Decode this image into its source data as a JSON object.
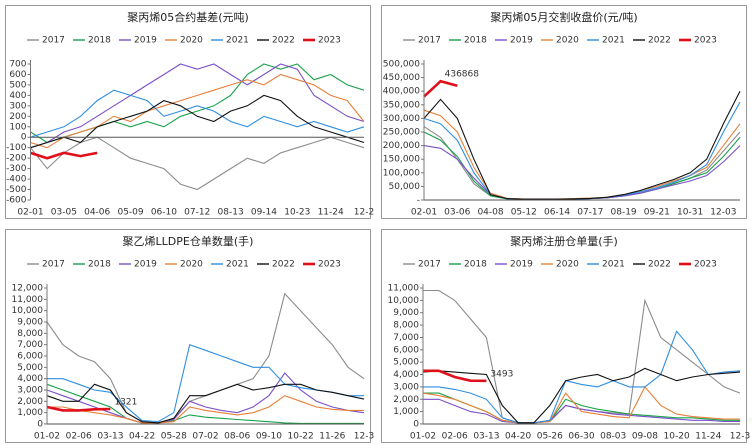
{
  "chart_data": [
    {
      "type": "line",
      "title": "聚丙烯05合约基差(元吨)",
      "grid": false,
      "categories": [
        "02-01",
        null,
        "03-05",
        null,
        "04-06",
        null,
        "05-09",
        null,
        "06-10",
        null,
        "07-12",
        null,
        "08-13",
        null,
        "09-14",
        null,
        "10-23",
        null,
        "11-24",
        null,
        "12-2"
      ],
      "ylim": [
        -600,
        700
      ],
      "yticks": [
        -600,
        -500,
        -400,
        -300,
        -200,
        -100,
        0,
        100,
        200,
        300,
        400,
        500,
        600,
        700
      ],
      "series": [
        {
          "name": "2017",
          "color": "#8c8c8c",
          "values": [
            -100,
            -300,
            -150,
            -50,
            0,
            -100,
            -200,
            -250,
            -300,
            -450,
            -500,
            -400,
            -300,
            -200,
            -250,
            -150,
            -100,
            -50,
            0,
            -50,
            -100
          ]
        },
        {
          "name": "2018",
          "color": "#1aa34a",
          "values": [
            50,
            -50,
            0,
            50,
            100,
            150,
            100,
            150,
            100,
            200,
            250,
            300,
            400,
            600,
            700,
            650,
            700,
            550,
            600,
            500,
            450
          ]
        },
        {
          "name": "2019",
          "color": "#7b4fc9",
          "values": [
            -100,
            -50,
            50,
            100,
            200,
            300,
            400,
            500,
            600,
            700,
            650,
            700,
            600,
            500,
            600,
            700,
            650,
            400,
            300,
            200,
            150
          ]
        },
        {
          "name": "2020",
          "color": "#e8803a",
          "values": [
            -50,
            -100,
            0,
            50,
            100,
            200,
            150,
            250,
            300,
            350,
            400,
            450,
            500,
            550,
            500,
            600,
            550,
            500,
            400,
            350,
            150
          ]
        },
        {
          "name": "2021",
          "color": "#2f8fe0",
          "values": [
            0,
            50,
            100,
            200,
            350,
            450,
            400,
            350,
            200,
            250,
            300,
            250,
            150,
            100,
            200,
            150,
            100,
            150,
            100,
            50,
            100
          ]
        },
        {
          "name": "2022",
          "color": "#111111",
          "values": [
            -100,
            -50,
            0,
            -50,
            100,
            150,
            200,
            250,
            350,
            300,
            200,
            150,
            250,
            300,
            400,
            350,
            200,
            100,
            50,
            0,
            -50
          ]
        },
        {
          "name": "2023",
          "color": "#e0101a",
          "values": [
            -150,
            -200,
            -150,
            -180,
            -150,
            null,
            null,
            null,
            null,
            null,
            null,
            null,
            null,
            null,
            null,
            null,
            null,
            null,
            null,
            null,
            null
          ]
        }
      ]
    },
    {
      "type": "line",
      "title": "聚丙烯05月交割收盘价(元/吨)",
      "grid": false,
      "annotation": "436868",
      "categories": [
        "02-01",
        null,
        "03-06",
        null,
        "04-08",
        null,
        "05-12",
        null,
        "06-14",
        null,
        "07-17",
        null,
        "08-19",
        null,
        "09-21",
        null,
        "10-31",
        null,
        "12-03",
        null
      ],
      "ylim": [
        0,
        500000
      ],
      "yticks": [
        {
          "value": 0,
          "label": "-"
        },
        {
          "value": 50000,
          "label": "50,000"
        },
        {
          "value": 100000,
          "label": "100,000"
        },
        {
          "value": 150000,
          "label": "150,000"
        },
        {
          "value": 200000,
          "label": "200,000"
        },
        {
          "value": 250000,
          "label": "250,000"
        },
        {
          "value": 300000,
          "label": "300,000"
        },
        {
          "value": 350000,
          "label": "350,000"
        },
        {
          "value": 400000,
          "label": "400,000"
        },
        {
          "value": 450000,
          "label": "450,000"
        },
        {
          "value": 500000,
          "label": "500,000"
        }
      ],
      "series": [
        {
          "name": "2017",
          "color": "#8c8c8c",
          "values": [
            270000,
            230000,
            150000,
            60000,
            15000,
            5000,
            3000,
            3000,
            3000,
            4000,
            5000,
            8000,
            15000,
            25000,
            40000,
            60000,
            80000,
            110000,
            180000,
            250000
          ]
        },
        {
          "name": "2018",
          "color": "#1aa34a",
          "values": [
            250000,
            220000,
            160000,
            70000,
            15000,
            4000,
            3000,
            3000,
            3000,
            3000,
            5000,
            8000,
            15000,
            25000,
            40000,
            60000,
            80000,
            100000,
            160000,
            230000
          ]
        },
        {
          "name": "2019",
          "color": "#7b4fc9",
          "values": [
            200000,
            190000,
            150000,
            80000,
            20000,
            5000,
            3000,
            3000,
            3000,
            3000,
            5000,
            8000,
            15000,
            25000,
            40000,
            55000,
            70000,
            90000,
            140000,
            200000
          ]
        },
        {
          "name": "2020",
          "color": "#e8803a",
          "values": [
            330000,
            310000,
            250000,
            120000,
            25000,
            6000,
            4000,
            4000,
            4000,
            5000,
            7000,
            10000,
            20000,
            35000,
            50000,
            70000,
            90000,
            120000,
            200000,
            280000
          ]
        },
        {
          "name": "2021",
          "color": "#2f8fe0",
          "values": [
            300000,
            280000,
            220000,
            100000,
            20000,
            5000,
            3000,
            3000,
            3000,
            4000,
            6000,
            10000,
            18000,
            30000,
            45000,
            65000,
            90000,
            130000,
            250000,
            360000
          ]
        },
        {
          "name": "2022",
          "color": "#111111",
          "values": [
            300000,
            370000,
            300000,
            150000,
            20000,
            5000,
            3000,
            3000,
            3000,
            4000,
            6000,
            10000,
            20000,
            35000,
            55000,
            75000,
            100000,
            150000,
            280000,
            400000
          ]
        },
        {
          "name": "2023",
          "color": "#e0101a",
          "values": [
            380000,
            436868,
            420000,
            null,
            null,
            null,
            null,
            null,
            null,
            null,
            null,
            null,
            null,
            null,
            null,
            null,
            null,
            null,
            null,
            null
          ]
        }
      ]
    },
    {
      "type": "line",
      "title": "聚乙烯LLDPE仓单数量(手)",
      "grid": false,
      "annotation": "1321",
      "categories": [
        "01-02",
        null,
        "02-06",
        null,
        "03-13",
        null,
        "04-22",
        null,
        "05-28",
        null,
        "07-02",
        null,
        "08-06",
        null,
        "09-10",
        null,
        "10-22",
        null,
        "11-26",
        null,
        "12-3"
      ],
      "ylim": [
        0,
        12000
      ],
      "yticks": [
        0,
        {
          "value": 1000,
          "label": "1,000"
        },
        {
          "value": 2000,
          "label": "2,000"
        },
        {
          "value": 3000,
          "label": "3,000"
        },
        {
          "value": 4000,
          "label": "4,000"
        },
        {
          "value": 5000,
          "label": "5,000"
        },
        {
          "value": 6000,
          "label": "6,000"
        },
        {
          "value": 7000,
          "label": "7,000"
        },
        {
          "value": 8000,
          "label": "8,000"
        },
        {
          "value": 9000,
          "label": "9,000"
        },
        {
          "value": 10000,
          "label": "10,000"
        },
        {
          "value": 11000,
          "label": "11,000"
        },
        {
          "value": 12000,
          "label": "12,000"
        }
      ],
      "series": [
        {
          "name": "2017",
          "color": "#8c8c8c",
          "values": [
            9000,
            7000,
            6000,
            5500,
            4000,
            1000,
            200,
            100,
            500,
            2000,
            2500,
            3000,
            3500,
            4000,
            6000,
            11500,
            10000,
            8500,
            7000,
            5000,
            4000
          ]
        },
        {
          "name": "2018",
          "color": "#1aa34a",
          "values": [
            3500,
            3000,
            2500,
            2000,
            1500,
            500,
            100,
            100,
            300,
            800,
            600,
            500,
            400,
            300,
            200,
            100,
            50,
            50,
            50,
            50,
            50
          ]
        },
        {
          "name": "2019",
          "color": "#7b4fc9",
          "values": [
            3000,
            2500,
            2000,
            1500,
            1000,
            500,
            100,
            100,
            400,
            2000,
            1500,
            1200,
            1000,
            1500,
            2500,
            4500,
            3000,
            2000,
            1500,
            1200,
            1000
          ]
        },
        {
          "name": "2020",
          "color": "#e8803a",
          "values": [
            1500,
            1500,
            1200,
            1000,
            800,
            500,
            100,
            100,
            200,
            1500,
            1200,
            1000,
            800,
            1000,
            1500,
            2500,
            2000,
            1500,
            1300,
            1200,
            1200
          ]
        },
        {
          "name": "2021",
          "color": "#2f8fe0",
          "values": [
            4000,
            4000,
            3500,
            3000,
            2800,
            1500,
            300,
            200,
            1000,
            7000,
            6500,
            6000,
            5500,
            5000,
            5000,
            3500,
            3200,
            3000,
            2800,
            2500,
            2500
          ]
        },
        {
          "name": "2022",
          "color": "#111111",
          "values": [
            2500,
            2000,
            2000,
            3500,
            3000,
            1000,
            200,
            100,
            500,
            2500,
            2500,
            3000,
            3500,
            3000,
            3200,
            3500,
            3500,
            3000,
            2800,
            2500,
            2200
          ]
        },
        {
          "name": "2023",
          "color": "#e0101a",
          "values": [
            1500,
            1200,
            1200,
            1300,
            1321,
            null,
            null,
            null,
            null,
            null,
            null,
            null,
            null,
            null,
            null,
            null,
            null,
            null,
            null,
            null,
            null
          ]
        }
      ]
    },
    {
      "type": "line",
      "title": "聚丙烯注册仓单量(手)",
      "grid": false,
      "annotation": "3493",
      "categories": [
        "01-02",
        null,
        "02-06",
        null,
        "03-13",
        null,
        "04-20",
        null,
        "05-26",
        null,
        "06-30",
        null,
        "08-03",
        null,
        "09-08",
        null,
        "10-20",
        null,
        "11-24",
        null,
        "12-3"
      ],
      "ylim": [
        0,
        11000
      ],
      "yticks": [
        0,
        {
          "value": 1000,
          "label": "1,000"
        },
        {
          "value": 2000,
          "label": "2,000"
        },
        {
          "value": 3000,
          "label": "3,000"
        },
        {
          "value": 4000,
          "label": "4,000"
        },
        {
          "value": 5000,
          "label": "5,000"
        },
        {
          "value": 6000,
          "label": "6,000"
        },
        {
          "value": 7000,
          "label": "7,000"
        },
        {
          "value": 8000,
          "label": "8,000"
        },
        {
          "value": 9000,
          "label": "9,000"
        },
        {
          "value": 10000,
          "label": "10,000"
        },
        {
          "value": 11000,
          "label": "11,000"
        }
      ],
      "series": [
        {
          "name": "2017",
          "color": "#8c8c8c",
          "values": [
            10800,
            10800,
            10000,
            8500,
            7000,
            500,
            100,
            100,
            300,
            1500,
            1200,
            1000,
            900,
            800,
            10000,
            7000,
            6000,
            5000,
            4000,
            3000,
            2500
          ]
        },
        {
          "name": "2018",
          "color": "#1aa34a",
          "values": [
            2500,
            2500,
            2000,
            1500,
            1000,
            300,
            100,
            100,
            200,
            2000,
            1500,
            1200,
            1000,
            800,
            700,
            600,
            500,
            500,
            400,
            300,
            300
          ]
        },
        {
          "name": "2019",
          "color": "#7b4fc9",
          "values": [
            2000,
            2000,
            1500,
            1000,
            800,
            200,
            100,
            100,
            200,
            1500,
            1200,
            1000,
            800,
            700,
            600,
            500,
            400,
            300,
            300,
            200,
            200
          ]
        },
        {
          "name": "2020",
          "color": "#e8803a",
          "values": [
            2500,
            2300,
            2000,
            1500,
            1000,
            300,
            100,
            100,
            200,
            2500,
            1000,
            800,
            600,
            500,
            3000,
            1500,
            800,
            600,
            500,
            400,
            400
          ]
        },
        {
          "name": "2021",
          "color": "#2f8fe0",
          "values": [
            3000,
            3000,
            2800,
            2500,
            2000,
            500,
            100,
            100,
            300,
            3500,
            3200,
            3000,
            3500,
            3000,
            3000,
            4000,
            7500,
            6000,
            4000,
            4200,
            4300
          ]
        },
        {
          "name": "2022",
          "color": "#111111",
          "values": [
            4200,
            4300,
            4200,
            4100,
            4000,
            1500,
            100,
            100,
            1500,
            3500,
            3800,
            4000,
            3500,
            3800,
            4500,
            4000,
            3500,
            3800,
            4000,
            4100,
            4200
          ]
        },
        {
          "name": "2023",
          "color": "#e0101a",
          "values": [
            4300,
            4300,
            3800,
            3500,
            3493,
            null,
            null,
            null,
            null,
            null,
            null,
            null,
            null,
            null,
            null,
            null,
            null,
            null,
            null,
            null,
            null
          ]
        }
      ]
    }
  ]
}
